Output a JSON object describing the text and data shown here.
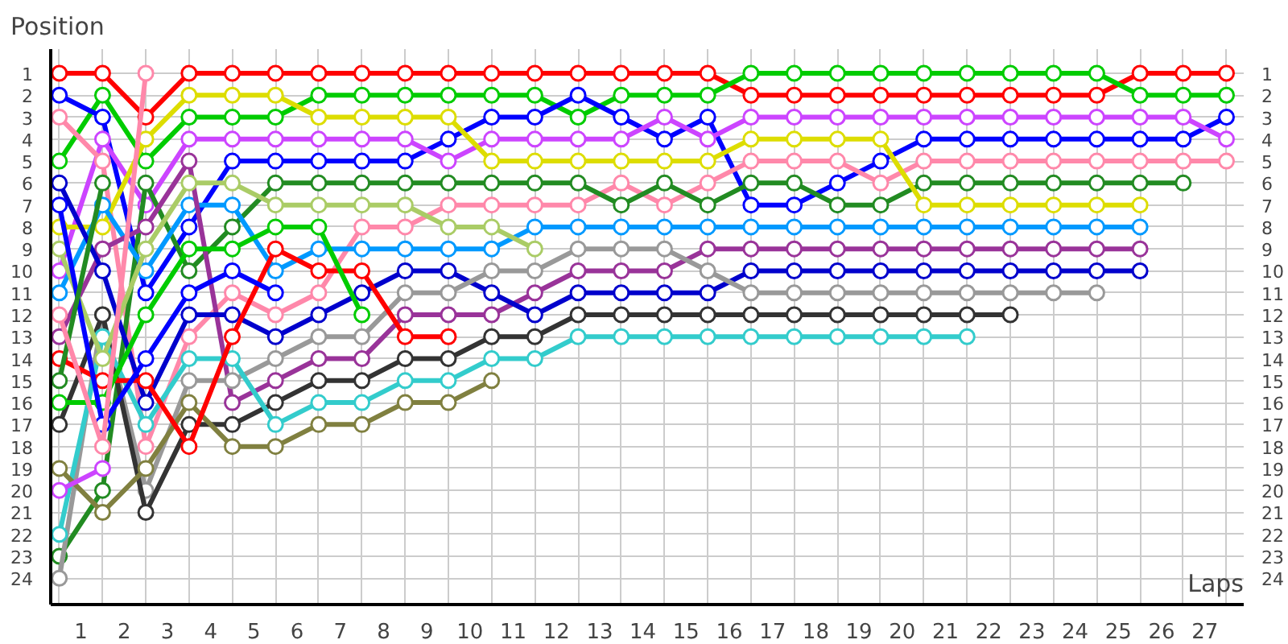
{
  "chart_data": {
    "type": "line",
    "xlabel": "Laps",
    "ylabel": "Position",
    "x": [
      0,
      1,
      2,
      3,
      4,
      5,
      6,
      7,
      8,
      9,
      10,
      11,
      12,
      13,
      14,
      15,
      16,
      17,
      18,
      19,
      20,
      21,
      22,
      23,
      24,
      25,
      26,
      27
    ],
    "xlim": [
      -0.2,
      27.4
    ],
    "ylim": [
      25.2,
      -0.1
    ],
    "y2lim": [
      25.2,
      -0.1
    ],
    "xticks": [
      {
        "value": 0.5,
        "label": "1"
      },
      {
        "value": 1.5,
        "label": "2"
      },
      {
        "value": 2.5,
        "label": "3"
      },
      {
        "value": 3.5,
        "label": "4"
      },
      {
        "value": 4.5,
        "label": "5"
      },
      {
        "value": 5.5,
        "label": "6"
      },
      {
        "value": 6.5,
        "label": "7"
      },
      {
        "value": 7.5,
        "label": "8"
      },
      {
        "value": 8.5,
        "label": "9"
      },
      {
        "value": 9.5,
        "label": "10"
      },
      {
        "value": 10.5,
        "label": "11"
      },
      {
        "value": 11.5,
        "label": "12"
      },
      {
        "value": 12.5,
        "label": "13"
      },
      {
        "value": 13.5,
        "label": "14"
      },
      {
        "value": 14.5,
        "label": "15"
      },
      {
        "value": 15.5,
        "label": "16"
      },
      {
        "value": 16.5,
        "label": "17"
      },
      {
        "value": 17.5,
        "label": "18"
      },
      {
        "value": 18.5,
        "label": "19"
      },
      {
        "value": 19.5,
        "label": "20"
      },
      {
        "value": 20.5,
        "label": "21"
      },
      {
        "value": 21.5,
        "label": "22"
      },
      {
        "value": 22.5,
        "label": "23"
      },
      {
        "value": 23.5,
        "label": "24"
      },
      {
        "value": 24.5,
        "label": "25"
      },
      {
        "value": 25.5,
        "label": "26"
      },
      {
        "value": 26.5,
        "label": "27"
      }
    ],
    "yticks": [
      1,
      2,
      3,
      4,
      5,
      6,
      7,
      8,
      9,
      10,
      11,
      12,
      13,
      14,
      15,
      16,
      17,
      18,
      19,
      20,
      21,
      22,
      23,
      24
    ],
    "y2ticks": [
      1,
      2,
      3,
      4,
      5,
      6,
      7,
      8,
      9,
      10,
      11,
      12,
      13,
      14,
      15,
      16,
      17,
      18,
      19,
      20,
      21,
      22,
      23,
      24
    ],
    "grid": true,
    "marker": "circle",
    "line_style": "solid",
    "series": [
      {
        "color": "#ff0000",
        "values": [
          1,
          1,
          3,
          1,
          1,
          1,
          1,
          1,
          1,
          1,
          1,
          1,
          1,
          1,
          1,
          1,
          2,
          2,
          2,
          2,
          2,
          2,
          2,
          2,
          2,
          1,
          1,
          1
        ]
      },
      {
        "color": "#00cc00",
        "values": [
          5,
          2,
          5,
          3,
          3,
          3,
          2,
          2,
          2,
          2,
          2,
          2,
          3,
          2,
          2,
          2,
          1,
          1,
          1,
          1,
          1,
          1,
          1,
          1,
          1,
          2,
          2,
          2
        ]
      },
      {
        "color": "#0000ff",
        "values": [
          2,
          3,
          11,
          8,
          5,
          5,
          5,
          5,
          5,
          4,
          3,
          3,
          2,
          3,
          4,
          3,
          7,
          7,
          6,
          5,
          4,
          4,
          4,
          4,
          4,
          4,
          4,
          3
        ]
      },
      {
        "color": "#cc44ff",
        "values": [
          10,
          4,
          7,
          4,
          4,
          4,
          4,
          4,
          4,
          5,
          4,
          4,
          4,
          4,
          3,
          4,
          3,
          3,
          3,
          3,
          3,
          3,
          3,
          3,
          3,
          3,
          3,
          4
        ]
      },
      {
        "color": "#ff88aa",
        "values": [
          3,
          5,
          18,
          13,
          11,
          12,
          11,
          8,
          8,
          7,
          7,
          7,
          7,
          6,
          7,
          6,
          5,
          5,
          5,
          6,
          5,
          5,
          5,
          5,
          5,
          5,
          5,
          5
        ]
      },
      {
        "color": "#228b22",
        "values": [
          23,
          20,
          6,
          10,
          8,
          6,
          6,
          6,
          6,
          6,
          6,
          6,
          6,
          7,
          6,
          7,
          6,
          6,
          7,
          7,
          6,
          6,
          6,
          6,
          6,
          6,
          6,
          null
        ]
      },
      {
        "color": "#dddd00",
        "values": [
          8,
          8,
          4,
          2,
          2,
          2,
          3,
          3,
          3,
          3,
          5,
          5,
          5,
          5,
          5,
          5,
          4,
          4,
          4,
          4,
          7,
          7,
          7,
          7,
          7,
          7,
          null,
          null
        ]
      },
      {
        "color": "#0099ff",
        "values": [
          11,
          7,
          10,
          7,
          7,
          10,
          9,
          9,
          9,
          9,
          9,
          8,
          8,
          8,
          8,
          8,
          8,
          8,
          8,
          8,
          8,
          8,
          8,
          8,
          8,
          8,
          null,
          null
        ]
      },
      {
        "color": "#993399",
        "values": [
          13,
          9,
          8,
          5,
          16,
          15,
          14,
          14,
          12,
          12,
          12,
          11,
          10,
          10,
          10,
          9,
          9,
          9,
          9,
          9,
          9,
          9,
          9,
          9,
          9,
          9,
          null,
          null
        ]
      },
      {
        "color": "#0000cc",
        "values": [
          6,
          10,
          16,
          12,
          12,
          13,
          12,
          11,
          10,
          10,
          11,
          12,
          11,
          11,
          11,
          11,
          10,
          10,
          10,
          10,
          10,
          10,
          10,
          10,
          10,
          10,
          null,
          null
        ]
      },
      {
        "color": "#999999",
        "values": [
          24,
          12,
          20,
          15,
          15,
          14,
          13,
          13,
          11,
          11,
          10,
          10,
          9,
          9,
          9,
          10,
          11,
          11,
          11,
          11,
          11,
          11,
          11,
          11,
          11,
          null,
          null,
          null
        ]
      },
      {
        "color": "#333333",
        "values": [
          17,
          12,
          21,
          17,
          17,
          16,
          15,
          15,
          14,
          14,
          13,
          13,
          12,
          12,
          12,
          12,
          12,
          12,
          12,
          12,
          12,
          12,
          12,
          null,
          null,
          null,
          null,
          null
        ]
      },
      {
        "color": "#33cccc",
        "values": [
          22,
          13,
          17,
          14,
          14,
          17,
          16,
          16,
          15,
          15,
          14,
          14,
          13,
          13,
          13,
          13,
          13,
          13,
          13,
          13,
          13,
          13,
          null,
          null,
          null,
          null,
          null,
          null
        ]
      },
      {
        "color": "#808040",
        "values": [
          19,
          21,
          19,
          16,
          18,
          18,
          17,
          17,
          16,
          16,
          15,
          null,
          null,
          null,
          null,
          null,
          null,
          null,
          null,
          null,
          null,
          null,
          null,
          null,
          null,
          null,
          null,
          null
        ]
      },
      {
        "color": "#ff0000",
        "values": [
          14,
          15,
          15,
          18,
          13,
          9,
          10,
          10,
          13,
          13,
          null,
          null,
          null,
          null,
          null,
          null,
          null,
          null,
          null,
          null,
          null,
          null,
          null,
          null,
          null,
          null,
          null,
          null
        ]
      },
      {
        "color": "#00cc00",
        "values": [
          16,
          16,
          12,
          9,
          9,
          8,
          8,
          12,
          null,
          null,
          null,
          null,
          null,
          null,
          null,
          null,
          null,
          null,
          null,
          null,
          null,
          null,
          null,
          null,
          null,
          null,
          null,
          null
        ]
      },
      {
        "color": "#aacc66",
        "values": [
          9,
          14,
          9,
          6,
          6,
          7,
          7,
          7,
          7,
          8,
          8,
          9,
          null,
          null,
          null,
          null,
          null,
          null,
          null,
          null,
          null,
          null,
          null,
          null,
          null,
          null,
          null,
          null
        ]
      },
      {
        "color": "#0000ff",
        "values": [
          7,
          17,
          14,
          11,
          10,
          11,
          null,
          null,
          null,
          null,
          null,
          null,
          null,
          null,
          null,
          null,
          null,
          null,
          null,
          null,
          null,
          null,
          null,
          null,
          null,
          null,
          null,
          null
        ]
      },
      {
        "color": "#cc44ff",
        "values": [
          20,
          19,
          null,
          null,
          null,
          null,
          null,
          null,
          null,
          null,
          null,
          null,
          null,
          null,
          null,
          null,
          null,
          null,
          null,
          null,
          null,
          null,
          null,
          null,
          null,
          null,
          null,
          null
        ]
      },
      {
        "color": "#228b22",
        "values": [
          15,
          6,
          null,
          null,
          null,
          null,
          null,
          null,
          null,
          null,
          null,
          null,
          null,
          null,
          null,
          null,
          null,
          null,
          null,
          null,
          null,
          null,
          null,
          null,
          null,
          null,
          null,
          null
        ]
      },
      {
        "color": "#ff88aa",
        "values": [
          12,
          18,
          1,
          null,
          null,
          null,
          null,
          null,
          null,
          null,
          null,
          null,
          null,
          null,
          null,
          null,
          null,
          null,
          null,
          null,
          null,
          null,
          null,
          null,
          null,
          null,
          null,
          null
        ]
      }
    ]
  }
}
